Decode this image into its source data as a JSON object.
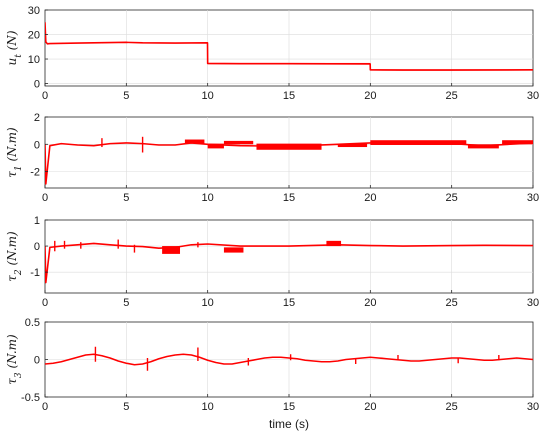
{
  "figure": {
    "xlabel": "time (s)",
    "line_color": "#ff0000",
    "grid": true
  },
  "chart_data": [
    {
      "type": "line",
      "ylabel": "u_t (N)",
      "xlim": [
        0,
        30
      ],
      "ylim": [
        -1,
        30
      ],
      "xticks": [
        0,
        5,
        10,
        15,
        20,
        25,
        30
      ],
      "yticks": [
        0,
        10,
        20,
        30
      ],
      "series": [
        {
          "x": [
            0,
            0.05,
            0.15,
            0.3,
            2,
            4,
            5,
            6,
            8,
            9.99,
            10.0,
            12,
            15,
            19.99,
            20.0,
            22,
            25,
            30
          ],
          "y": [
            25,
            17,
            16.2,
            16.3,
            16.5,
            16.7,
            16.8,
            16.6,
            16.5,
            16.6,
            8.2,
            8.1,
            8.1,
            8.0,
            5.6,
            5.5,
            5.5,
            5.6
          ]
        }
      ],
      "bands": [
        {
          "x0": 10,
          "x1": 20,
          "y0": 7.9,
          "y1": 8.4
        },
        {
          "x0": 20,
          "x1": 30,
          "y0": 5.3,
          "y1": 5.8
        }
      ],
      "spikes": []
    },
    {
      "type": "line",
      "ylabel": "τ_1 (N.m)",
      "xlim": [
        0,
        30
      ],
      "ylim": [
        -3.2,
        2
      ],
      "xticks": [
        0,
        5,
        10,
        15,
        20,
        25,
        30
      ],
      "yticks": [
        -2,
        0,
        2
      ],
      "series": [
        {
          "x": [
            0,
            0.05,
            0.3,
            1,
            2,
            3,
            4,
            5,
            6,
            7,
            8,
            9,
            10,
            12,
            15,
            18,
            20,
            22,
            25,
            27,
            30
          ],
          "y": [
            0,
            -2.9,
            -0.1,
            0.05,
            -0.05,
            -0.1,
            0.05,
            0.1,
            0.05,
            -0.05,
            -0.05,
            0.1,
            0.0,
            -0.1,
            -0.15,
            0.0,
            0.1,
            0.15,
            0.05,
            -0.1,
            0.1
          ]
        }
      ],
      "bands": [
        {
          "x0": 8.6,
          "x1": 9.8,
          "y0": 0.05,
          "y1": 0.35
        },
        {
          "x0": 10,
          "x1": 11,
          "y0": -0.3,
          "y1": 0.05
        },
        {
          "x0": 11,
          "x1": 12.8,
          "y0": 0.0,
          "y1": 0.25
        },
        {
          "x0": 13,
          "x1": 17,
          "y0": -0.4,
          "y1": 0.05
        },
        {
          "x0": 18,
          "x1": 19.8,
          "y0": -0.2,
          "y1": 0.05
        },
        {
          "x0": 20,
          "x1": 25.9,
          "y0": -0.05,
          "y1": 0.3
        },
        {
          "x0": 26,
          "x1": 27.9,
          "y0": -0.3,
          "y1": 0.0
        },
        {
          "x0": 28.1,
          "x1": 30,
          "y0": 0.0,
          "y1": 0.3
        }
      ],
      "spikes": [
        {
          "x": 3.5,
          "y0": -0.2,
          "y1": 0.45
        },
        {
          "x": 6,
          "y0": -0.6,
          "y1": 0.55
        }
      ]
    },
    {
      "type": "line",
      "ylabel": "τ_2 (N.m)",
      "xlim": [
        0,
        30
      ],
      "ylim": [
        -1.8,
        1
      ],
      "xticks": [
        0,
        5,
        10,
        15,
        20,
        25,
        30
      ],
      "yticks": [
        -1,
        0,
        1
      ],
      "series": [
        {
          "x": [
            0,
            0.05,
            0.3,
            1,
            2,
            3,
            4,
            5,
            6,
            7,
            8,
            9,
            10,
            12,
            15,
            18,
            20,
            22,
            25,
            27,
            30
          ],
          "y": [
            0,
            -1.4,
            -0.05,
            0.0,
            0.05,
            0.1,
            0.05,
            0.0,
            -0.02,
            -0.08,
            -0.05,
            0.05,
            0.08,
            0.0,
            0.0,
            0.05,
            0.02,
            0.0,
            0.02,
            0.03,
            0.02
          ]
        }
      ],
      "bands": [
        {
          "x0": 7.2,
          "x1": 8.3,
          "y0": -0.3,
          "y1": 0.0
        },
        {
          "x0": 11,
          "x1": 12.2,
          "y0": -0.25,
          "y1": -0.05
        },
        {
          "x0": 17.3,
          "x1": 18.2,
          "y0": 0.0,
          "y1": 0.2
        }
      ],
      "spikes": [
        {
          "x": 0.6,
          "y0": -0.2,
          "y1": 0.2
        },
        {
          "x": 1.2,
          "y0": -0.1,
          "y1": 0.2
        },
        {
          "x": 2.2,
          "y0": -0.1,
          "y1": 0.15
        },
        {
          "x": 4.5,
          "y0": -0.1,
          "y1": 0.25
        },
        {
          "x": 5.5,
          "y0": -0.25,
          "y1": 0.05
        },
        {
          "x": 9.4,
          "y0": -0.05,
          "y1": 0.15
        }
      ]
    },
    {
      "type": "line",
      "ylabel": "τ_3 (N.m)",
      "xlim": [
        0,
        30
      ],
      "ylim": [
        -0.5,
        0.5
      ],
      "xticks": [
        0,
        5,
        10,
        15,
        20,
        25,
        30
      ],
      "yticks": [
        -0.5,
        0,
        0.5
      ],
      "series": [
        {
          "x": [
            0,
            0.5,
            1,
            1.5,
            2,
            2.5,
            3,
            3.5,
            4,
            4.5,
            5,
            5.5,
            6,
            6.5,
            7,
            7.5,
            8,
            8.5,
            9,
            9.5,
            10,
            10.5,
            11,
            11.5,
            12,
            12.5,
            13,
            13.5,
            14,
            14.5,
            15,
            15.5,
            16,
            16.5,
            17,
            17.5,
            18,
            18.5,
            19,
            19.5,
            20,
            20.5,
            21,
            21.5,
            22,
            22.5,
            23,
            23.5,
            24,
            24.5,
            25,
            25.5,
            26,
            26.5,
            27,
            27.5,
            28,
            28.5,
            29,
            29.5,
            30
          ],
          "y": [
            -0.06,
            -0.05,
            -0.03,
            0.0,
            0.03,
            0.06,
            0.07,
            0.05,
            0.02,
            -0.02,
            -0.05,
            -0.07,
            -0.06,
            -0.03,
            0.01,
            0.04,
            0.06,
            0.07,
            0.06,
            0.03,
            -0.01,
            -0.04,
            -0.06,
            -0.06,
            -0.04,
            -0.02,
            0.0,
            0.02,
            0.03,
            0.03,
            0.02,
            0.01,
            -0.01,
            -0.02,
            -0.03,
            -0.03,
            -0.02,
            0.0,
            0.01,
            0.02,
            0.03,
            0.02,
            0.01,
            0.0,
            -0.01,
            -0.02,
            -0.02,
            -0.01,
            0.0,
            0.01,
            0.02,
            0.02,
            0.01,
            0.0,
            -0.01,
            -0.01,
            0.0,
            0.01,
            0.02,
            0.01,
            0.0
          ]
        }
      ],
      "bands": [],
      "spikes": [
        {
          "x": 3.1,
          "y0": -0.03,
          "y1": 0.17
        },
        {
          "x": 6.3,
          "y0": -0.15,
          "y1": 0.02
        },
        {
          "x": 9.4,
          "y0": -0.02,
          "y1": 0.16
        },
        {
          "x": 12.5,
          "y0": -0.08,
          "y1": 0.02
        },
        {
          "x": 15.1,
          "y0": -0.01,
          "y1": 0.07
        },
        {
          "x": 19.1,
          "y0": -0.06,
          "y1": 0.02
        },
        {
          "x": 21.7,
          "y0": -0.01,
          "y1": 0.06
        },
        {
          "x": 25.4,
          "y0": -0.05,
          "y1": 0.02
        },
        {
          "x": 27.9,
          "y0": -0.01,
          "y1": 0.06
        }
      ]
    }
  ]
}
